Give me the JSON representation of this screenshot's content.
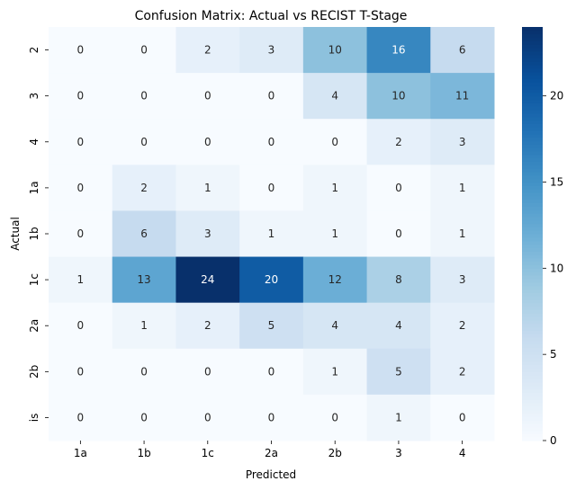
{
  "chart_data": {
    "type": "heatmap",
    "title": "Confusion Matrix: Actual vs RECIST T-Stage",
    "xlabel": "Predicted",
    "ylabel": "Actual",
    "x_categories": [
      "1a",
      "1b",
      "1c",
      "2a",
      "2b",
      "3",
      "4"
    ],
    "y_categories": [
      "2",
      "3",
      "4",
      "1a",
      "1b",
      "1c",
      "2a",
      "2b",
      "is"
    ],
    "values": [
      [
        0,
        0,
        2,
        3,
        10,
        16,
        6
      ],
      [
        0,
        0,
        0,
        0,
        4,
        10,
        11
      ],
      [
        0,
        0,
        0,
        0,
        0,
        2,
        3
      ],
      [
        0,
        2,
        1,
        0,
        1,
        0,
        1
      ],
      [
        0,
        6,
        3,
        1,
        1,
        0,
        1
      ],
      [
        1,
        13,
        24,
        20,
        12,
        8,
        3
      ],
      [
        0,
        1,
        2,
        5,
        4,
        4,
        2
      ],
      [
        0,
        0,
        0,
        0,
        1,
        5,
        2
      ],
      [
        0,
        0,
        0,
        0,
        0,
        1,
        0
      ]
    ],
    "colormap": "Blues",
    "colorbar": {
      "min": 0,
      "max": 24,
      "ticks": [
        0,
        5,
        10,
        15,
        20
      ]
    }
  }
}
